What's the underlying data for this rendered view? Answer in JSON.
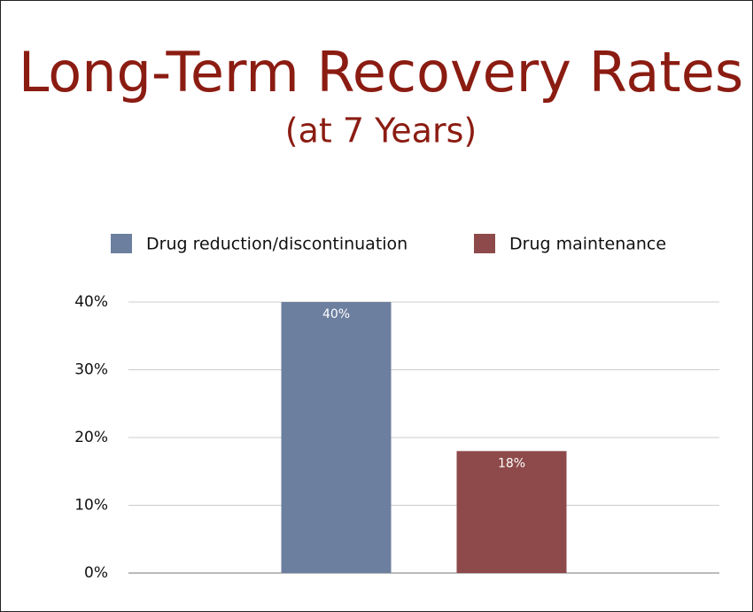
{
  "chart_data": {
    "type": "bar",
    "title": "Long-Term Recovery Rates",
    "subtitle": "(at 7 Years)",
    "categories": [
      null
    ],
    "series": [
      {
        "name": "Drug reduction/discontinuation",
        "color": "#6c7f9f",
        "values": [
          40
        ],
        "value_labels": [
          "40%"
        ]
      },
      {
        "name": "Drug maintenance",
        "color": "#8e4a4a",
        "values": [
          18
        ],
        "value_labels": [
          "18%"
        ]
      }
    ],
    "ylim": [
      0,
      40
    ],
    "yticks": [
      {
        "value": 0,
        "label": "0%"
      },
      {
        "value": 10,
        "label": "10%"
      },
      {
        "value": 20,
        "label": "20%"
      },
      {
        "value": 30,
        "label": "30%"
      },
      {
        "value": 40,
        "label": "40%"
      }
    ],
    "grid": true,
    "legend": "top"
  }
}
